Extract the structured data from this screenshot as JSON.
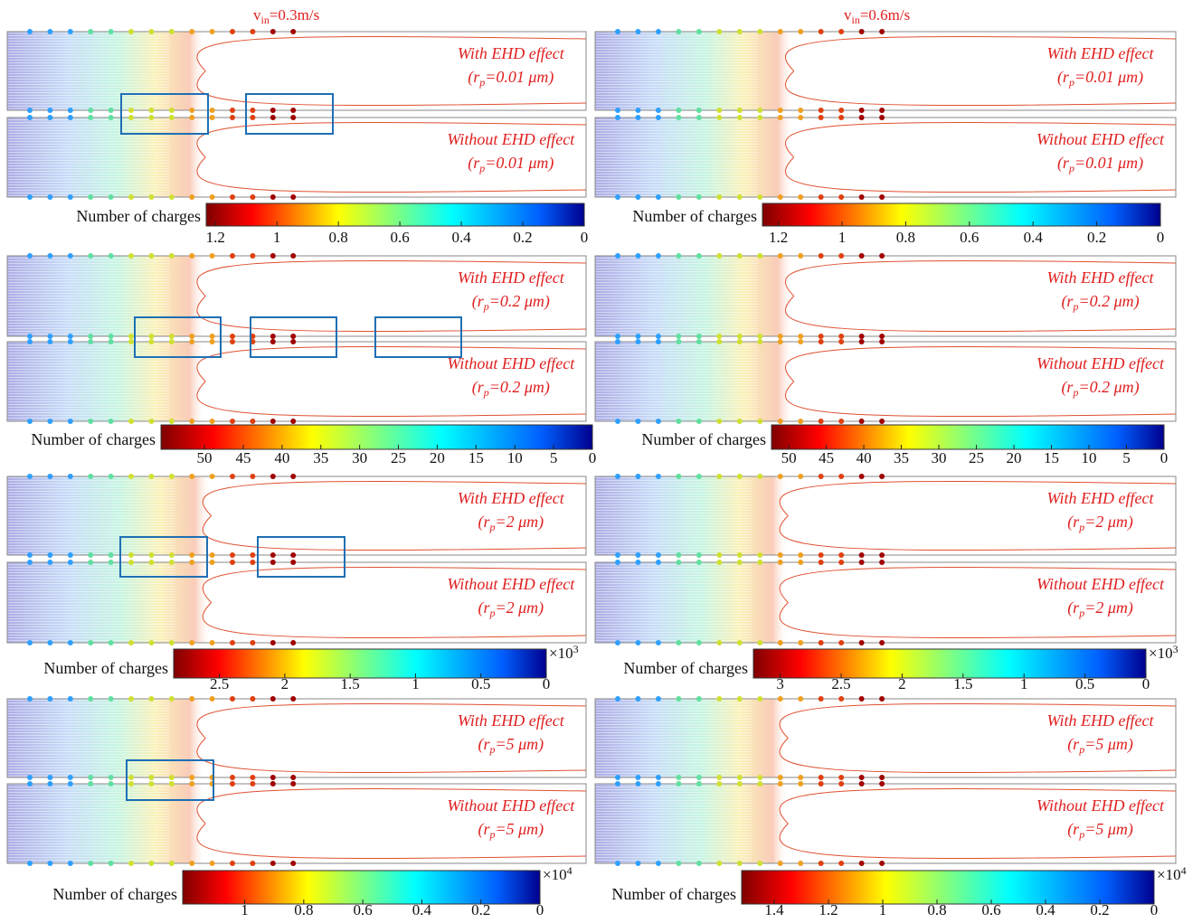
{
  "figure": {
    "velocities": [
      {
        "v": "v",
        "sub": "in",
        "rest": "=0.3m/s"
      },
      {
        "v": "v",
        "sub": "in",
        "rest": "=0.6m/s"
      }
    ],
    "rows": [
      {
        "panels": [
          {
            "upper": {
              "effect": "With EHD effect",
              "r": "(r",
              "sub": "p",
              "value": "=0.01 μm)"
            },
            "lower": {
              "effect": "Without EHD effect",
              "r": "(r",
              "sub": "p",
              "value": "=0.01 μm)"
            },
            "colorbar": {
              "label": "Number of charges",
              "clim": [
                1.23,
                0
              ],
              "ticks": [
                1.2,
                1,
                0.8,
                0.6,
                0.4,
                0.2,
                0
              ]
            }
          },
          {
            "upper": {
              "effect": "With EHD effect",
              "r": "(r",
              "sub": "p",
              "value": "=0.01 μm)"
            },
            "lower": {
              "effect": "Without EHD effect",
              "r": "(r",
              "sub": "p",
              "value": "=0.01 μm)"
            },
            "colorbar": {
              "label": "Number of charges",
              "clim": [
                1.25,
                0
              ],
              "ticks": [
                1.2,
                1,
                0.8,
                0.6,
                0.4,
                0.2,
                0
              ]
            }
          }
        ]
      },
      {
        "panels": [
          {
            "upper": {
              "effect": "With EHD effect",
              "r": "(r",
              "sub": "p",
              "value": "=0.2 μm)"
            },
            "lower": {
              "effect": "Without EHD effect",
              "r": "(r",
              "sub": "p",
              "value": "=0.2 μm)"
            },
            "colorbar": {
              "label": "Number of charges",
              "clim": [
                55.6,
                0
              ],
              "ticks": [
                50,
                45,
                40,
                35,
                30,
                25,
                20,
                15,
                10,
                5,
                0
              ]
            }
          },
          {
            "upper": {
              "effect": "With EHD effect",
              "r": "(r",
              "sub": "p",
              "value": "=0.2 μm)"
            },
            "lower": {
              "effect": "Without EHD effect",
              "r": "(r",
              "sub": "p",
              "value": "=0.2 μm)"
            },
            "colorbar": {
              "label": "Number of charges",
              "clim": [
                52.3,
                0
              ],
              "ticks": [
                50,
                45,
                40,
                35,
                30,
                25,
                20,
                15,
                10,
                5,
                0
              ]
            }
          }
        ]
      },
      {
        "panels": [
          {
            "upper": {
              "effect": "With EHD effect",
              "r": "(r",
              "sub": "p",
              "value": "=2 μm)"
            },
            "lower": {
              "effect": "Without EHD effect",
              "r": "(r",
              "sub": "p",
              "value": "=2 μm)"
            },
            "colorbar": {
              "label": "Number of charges",
              "clim": [
                2.85,
                0
              ],
              "ticks": [
                2.5,
                2,
                1.5,
                1,
                0.5,
                0
              ],
              "multiplier": {
                "base": "×10",
                "exp": "3"
              }
            }
          },
          {
            "upper": {
              "effect": "With EHD effect",
              "r": "(r",
              "sub": "p",
              "value": "=2 μm)"
            },
            "lower": {
              "effect": "Without EHD effect",
              "r": "(r",
              "sub": "p",
              "value": "=2 μm)"
            },
            "colorbar": {
              "label": "Number of charges",
              "clim": [
                3.22,
                0
              ],
              "ticks": [
                3,
                2.5,
                2,
                1.5,
                1,
                0.5,
                0
              ],
              "multiplier": {
                "base": "×10",
                "exp": "3"
              }
            }
          }
        ]
      },
      {
        "panels": [
          {
            "upper": {
              "effect": "With EHD effect",
              "r": "(r",
              "sub": "p",
              "value": "=5 μm)"
            },
            "lower": {
              "effect": "Without EHD effect",
              "r": "(r",
              "sub": "p",
              "value": "=5 μm)"
            },
            "colorbar": {
              "label": "Number of charges",
              "clim": [
                1.21,
                0
              ],
              "ticks": [
                1,
                0.8,
                0.6,
                0.4,
                0.2,
                0
              ],
              "multiplier": {
                "base": "×10",
                "exp": "4"
              }
            }
          },
          {
            "upper": {
              "effect": "With EHD effect",
              "r": "(r",
              "sub": "p",
              "value": "=5 μm)"
            },
            "lower": {
              "effect": "Without EHD effect",
              "r": "(r",
              "sub": "p",
              "value": "=5 μm)"
            },
            "colorbar": {
              "label": "Number of charges",
              "clim": [
                1.52,
                0
              ],
              "ticks": [
                1.4,
                1.2,
                1,
                0.8,
                0.6,
                0.4,
                0.2,
                0
              ],
              "multiplier": {
                "base": "×10",
                "exp": "4"
              }
            }
          }
        ]
      }
    ]
  }
}
